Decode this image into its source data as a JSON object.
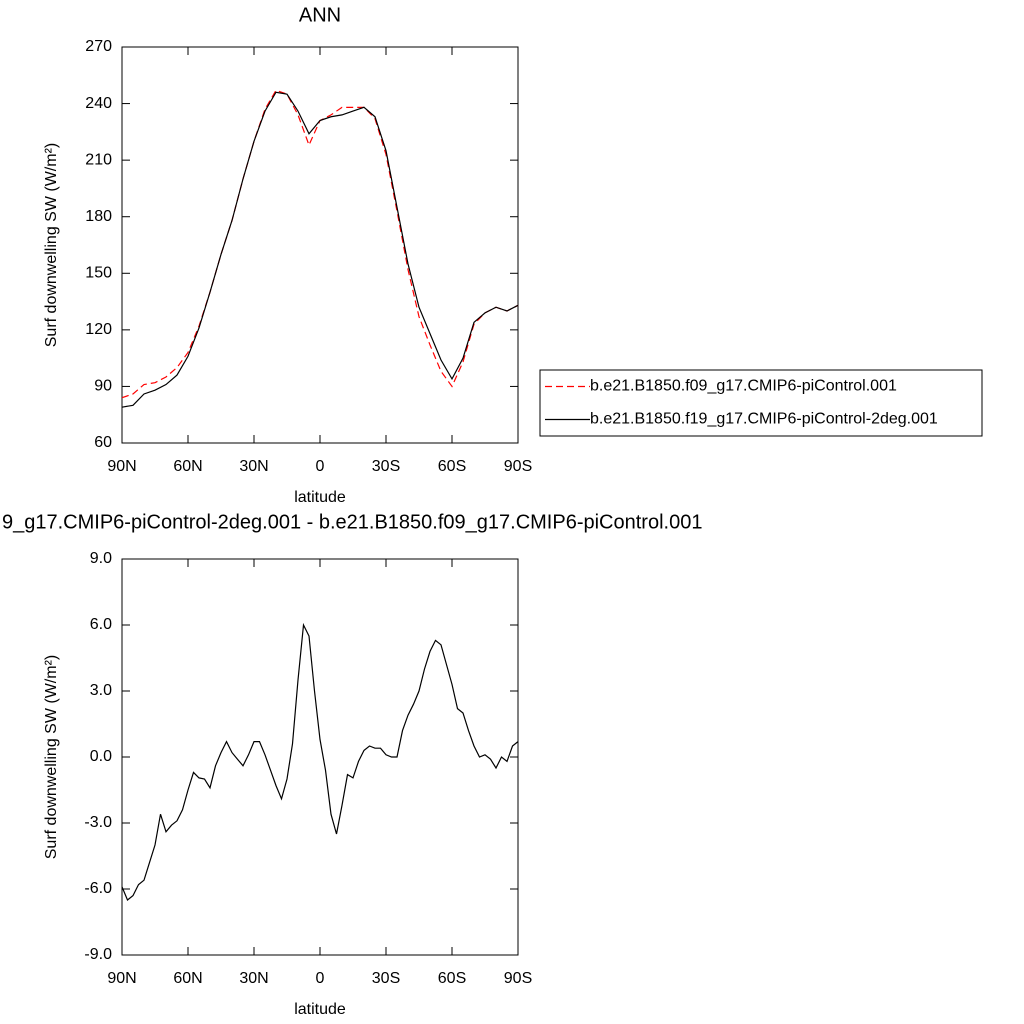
{
  "chart_data": [
    {
      "type": "line",
      "title": "ANN",
      "x_label": "latitude",
      "y_label": "Surf downwelling SW (W/m²)",
      "x": [
        90,
        85,
        80,
        75,
        70,
        65,
        60,
        55,
        50,
        45,
        40,
        35,
        30,
        25,
        20,
        15,
        10,
        5,
        0,
        -5,
        -10,
        -15,
        -20,
        -25,
        -30,
        -35,
        -40,
        -45,
        -50,
        -55,
        -60,
        -65,
        -70,
        -75,
        -80,
        -85,
        -90
      ],
      "xlim": [
        90,
        -90
      ],
      "xticks": [
        {
          "value": 90,
          "label": "90N"
        },
        {
          "value": 60,
          "label": "60N"
        },
        {
          "value": 30,
          "label": "30N"
        },
        0,
        {
          "value": -30,
          "label": "30S"
        },
        {
          "value": -60,
          "label": "60S"
        },
        {
          "value": -90,
          "label": "90S"
        }
      ],
      "ylim": [
        60,
        270
      ],
      "yticks": [
        60,
        90,
        120,
        150,
        180,
        210,
        240,
        270
      ],
      "series": [
        {
          "name": "b.e21.B1850.f09_g17.CMIP6-piControl.001",
          "color": "#ff0000",
          "style": "dashed",
          "values": [
            84,
            86,
            91,
            92,
            95,
            100,
            108,
            122,
            140,
            160,
            178,
            200,
            220,
            237,
            247,
            245,
            234,
            218,
            231,
            234,
            238,
            238,
            238,
            232,
            213,
            183,
            152,
            127,
            112,
            98,
            90,
            103,
            123,
            129,
            132,
            130,
            133
          ]
        },
        {
          "name": "b.e21.B1850.f19_g17.CMIP6-piControl-2deg.001",
          "color": "#000000",
          "style": "solid",
          "values": [
            79,
            80,
            86,
            88,
            91,
            96,
            106,
            121,
            140,
            160,
            178,
            200,
            220,
            236,
            246,
            245,
            236,
            224,
            231,
            233,
            234,
            236,
            238,
            233,
            215,
            185,
            155,
            132,
            118,
            104,
            94,
            105,
            124,
            129,
            132,
            130,
            133
          ]
        }
      ]
    },
    {
      "type": "line",
      "title": "9_g17.CMIP6-piControl-2deg.001 - b.e21.B1850.f09_g17.CMIP6-piControl.001",
      "x_label": "latitude",
      "y_label": "Surf downwelling SW (W/m²)",
      "x": [
        90,
        87.5,
        85,
        82.5,
        80,
        77.5,
        75,
        72.5,
        70,
        67.5,
        65,
        62.5,
        60,
        57.5,
        55,
        52.5,
        50,
        47.5,
        45,
        42.5,
        40,
        37.5,
        35,
        32.5,
        30,
        27.5,
        25,
        22.5,
        20,
        17.5,
        15,
        12.5,
        10,
        7.5,
        5,
        2.5,
        0,
        -2.5,
        -5,
        -7.5,
        -10,
        -12.5,
        -15,
        -17.5,
        -20,
        -22.5,
        -25,
        -27.5,
        -30,
        -32.5,
        -35,
        -37.5,
        -40,
        -42.5,
        -45,
        -47.5,
        -50,
        -52.5,
        -55,
        -57.5,
        -60,
        -62.5,
        -65,
        -67.5,
        -70,
        -72.5,
        -75,
        -77.5,
        -80,
        -82.5,
        -85,
        -87.5,
        -90
      ],
      "xlim": [
        90,
        -90
      ],
      "xticks": [
        {
          "value": 90,
          "label": "90N"
        },
        {
          "value": 60,
          "label": "60N"
        },
        {
          "value": 30,
          "label": "30N"
        },
        0,
        {
          "value": -30,
          "label": "30S"
        },
        {
          "value": -60,
          "label": "60S"
        },
        {
          "value": -90,
          "label": "90S"
        }
      ],
      "ylim": [
        -9,
        9
      ],
      "yticks": [
        {
          "value": -9,
          "label": "-9.0"
        },
        {
          "value": -6,
          "label": "-6.0"
        },
        {
          "value": -3,
          "label": "-3.0"
        },
        {
          "value": 0,
          "label": "0.0"
        },
        {
          "value": 3,
          "label": "3.0"
        },
        {
          "value": 6,
          "label": "6.0"
        },
        {
          "value": 9,
          "label": "9.0"
        }
      ],
      "color": "#000000",
      "values": [
        -5.9,
        -6.5,
        -6.3,
        -5.8,
        -5.6,
        -4.8,
        -4.0,
        -2.6,
        -3.4,
        -3.1,
        -2.9,
        -2.4,
        -1.5,
        -0.7,
        -0.95,
        -1.0,
        -1.4,
        -0.4,
        0.2,
        0.7,
        0.2,
        -0.1,
        -0.4,
        0.1,
        0.7,
        0.7,
        0.1,
        -0.6,
        -1.3,
        -1.9,
        -1.0,
        0.6,
        3.5,
        6.0,
        5.5,
        3.0,
        0.8,
        -0.6,
        -2.6,
        -3.5,
        -2.2,
        -0.8,
        -0.95,
        -0.2,
        0.3,
        0.5,
        0.4,
        0.4,
        0.1,
        0.0,
        0.0,
        1.2,
        1.9,
        2.4,
        3.0,
        4.0,
        4.8,
        5.3,
        5.1,
        4.2,
        3.3,
        2.2,
        2.0,
        1.2,
        0.5,
        0.0,
        0.1,
        -0.1,
        -0.5,
        0.0,
        -0.2,
        0.5,
        0.7
      ]
    }
  ]
}
